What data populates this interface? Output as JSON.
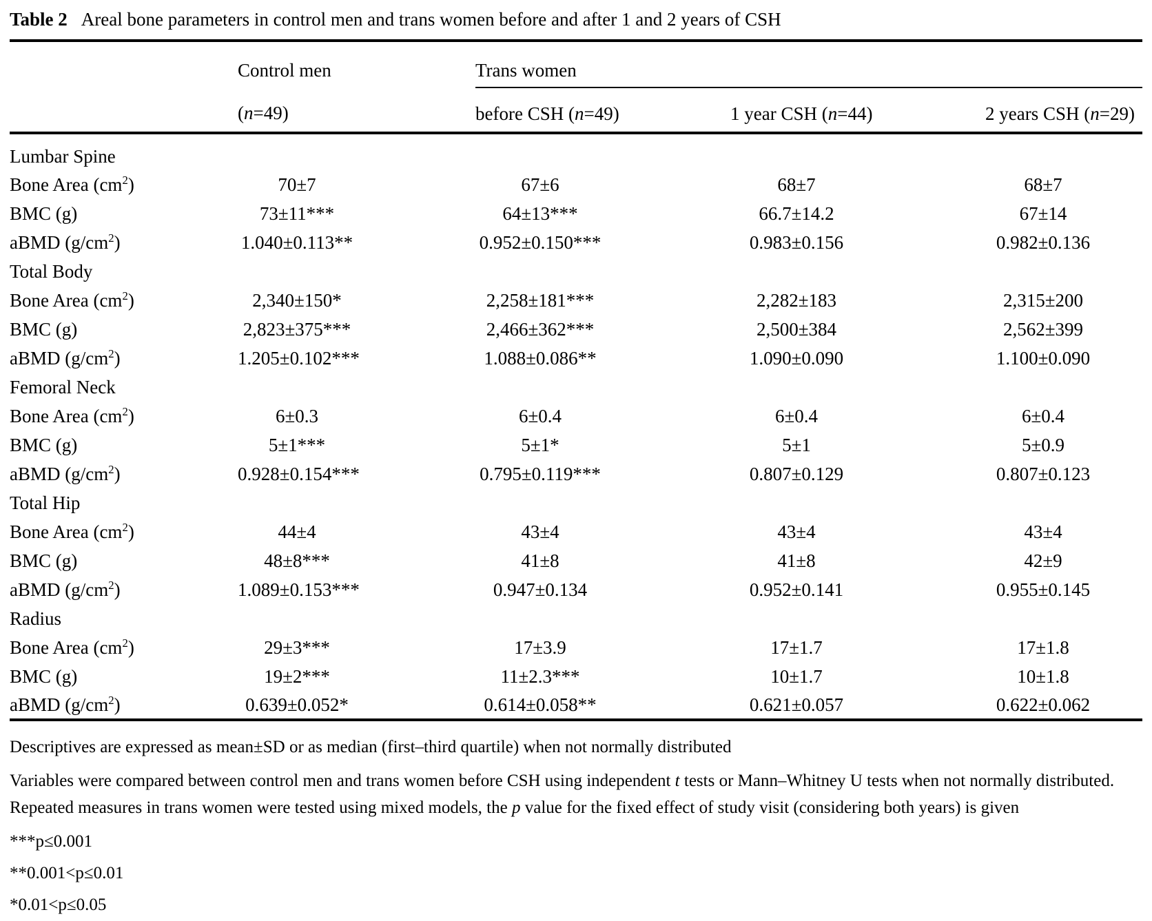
{
  "table": {
    "caption": {
      "label": "Table 2",
      "text": "Areal bone parameters in control men and trans women before and after 1 and 2 years of CSH"
    },
    "header": {
      "control_group": "Control men",
      "trans_group": "Trans women",
      "subcolumns": [
        {
          "pre": "(",
          "n": "n",
          "post": "=49)"
        },
        {
          "pre": "before CSH (",
          "n": "n",
          "post": "=49)"
        },
        {
          "pre": "1 year CSH (",
          "n": "n",
          "post": "=44)"
        },
        {
          "pre": "2 years CSH (",
          "n": "n",
          "post": "=29)"
        }
      ]
    },
    "sections": [
      {
        "name": "Lumbar Spine",
        "rows": [
          {
            "label": {
              "pre": "Bone Area (cm",
              "sup": "2",
              "post": ")"
            },
            "values": [
              "70±7",
              "67±6",
              "68±7",
              "68±7"
            ]
          },
          {
            "label": {
              "pre": "BMC (g)",
              "sup": "",
              "post": ""
            },
            "values": [
              "73±11***",
              "64±13***",
              "66.7±14.2",
              "67±14"
            ]
          },
          {
            "label": {
              "pre": "aBMD (g/cm",
              "sup": "2",
              "post": ")"
            },
            "values": [
              "1.040±0.113**",
              "0.952±0.150***",
              "0.983±0.156",
              "0.982±0.136"
            ]
          }
        ]
      },
      {
        "name": "Total Body",
        "rows": [
          {
            "label": {
              "pre": "Bone Area (cm",
              "sup": "2",
              "post": ")"
            },
            "values": [
              "2,340±150*",
              "2,258±181***",
              "2,282±183",
              "2,315±200"
            ]
          },
          {
            "label": {
              "pre": "BMC (g)",
              "sup": "",
              "post": ""
            },
            "values": [
              "2,823±375***",
              "2,466±362***",
              "2,500±384",
              "2,562±399"
            ]
          },
          {
            "label": {
              "pre": "aBMD (g/cm",
              "sup": "2",
              "post": ")"
            },
            "values": [
              "1.205±0.102***",
              "1.088±0.086**",
              "1.090±0.090",
              "1.100±0.090"
            ]
          }
        ]
      },
      {
        "name": "Femoral Neck",
        "rows": [
          {
            "label": {
              "pre": "Bone Area (cm",
              "sup": "2",
              "post": ")"
            },
            "values": [
              "6±0.3",
              "6±0.4",
              "6±0.4",
              "6±0.4"
            ]
          },
          {
            "label": {
              "pre": "BMC (g)",
              "sup": "",
              "post": ""
            },
            "values": [
              "5±1***",
              "5±1*",
              "5±1",
              "5±0.9"
            ]
          },
          {
            "label": {
              "pre": "aBMD (g/cm",
              "sup": "2",
              "post": ")"
            },
            "values": [
              "0.928±0.154***",
              "0.795±0.119***",
              "0.807±0.129",
              "0.807±0.123"
            ]
          }
        ]
      },
      {
        "name": "Total Hip",
        "rows": [
          {
            "label": {
              "pre": "Bone Area (cm",
              "sup": "2",
              "post": ")"
            },
            "values": [
              "44±4",
              "43±4",
              "43±4",
              "43±4"
            ]
          },
          {
            "label": {
              "pre": "BMC (g)",
              "sup": "",
              "post": ""
            },
            "values": [
              "48±8***",
              "41±8",
              "41±8",
              "42±9"
            ]
          },
          {
            "label": {
              "pre": "aBMD (g/cm",
              "sup": "2",
              "post": ")"
            },
            "values": [
              "1.089±0.153***",
              "0.947±0.134",
              "0.952±0.141",
              "0.955±0.145"
            ]
          }
        ]
      },
      {
        "name": "Radius",
        "rows": [
          {
            "label": {
              "pre": "Bone Area (cm",
              "sup": "2",
              "post": ")"
            },
            "values": [
              "29±3***",
              "17±3.9",
              "17±1.7",
              "17±1.8"
            ]
          },
          {
            "label": {
              "pre": "BMC (g)",
              "sup": "",
              "post": ""
            },
            "values": [
              "19±2***",
              "11±2.3***",
              "10±1.7",
              "10±1.8"
            ]
          },
          {
            "label": {
              "pre": "aBMD (g/cm",
              "sup": "2",
              "post": ")"
            },
            "values": [
              "0.639±0.052*",
              "0.614±0.058**",
              "0.621±0.057",
              "0.622±0.062"
            ]
          }
        ]
      }
    ],
    "footnotes": {
      "descriptives": "Descriptives are expressed as mean±SD or as median (first–third quartile) when not normally distributed",
      "methods": {
        "p1": "Variables were compared between control men and trans women before CSH using independent ",
        "t": "t",
        "p2": " tests or Mann–Whitney U tests when not normally distributed. Repeated measures in trans women were tested using mixed models, the ",
        "p": "p",
        "p3": " value for the fixed effect of study visit (considering both years) is given"
      },
      "significance": [
        "***p≤0.001",
        "**0.001<p≤0.01",
        "*0.01<p≤0.05"
      ]
    }
  }
}
